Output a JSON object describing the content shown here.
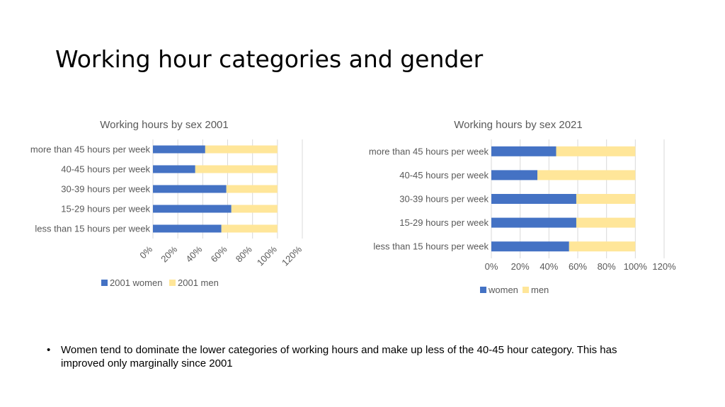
{
  "slide": {
    "title": "Working hour categories and gender",
    "bullet_symbol": "•",
    "bullet": "Women tend to dominate the lower categories of working hours and make up less of the 40-45 hour category. This has improved only marginally since 2001"
  },
  "colors": {
    "women": "#4472C4",
    "men": "#FFE699",
    "text": "#595959",
    "grid": "#D9D9D9"
  },
  "chart_data": [
    {
      "type": "bar",
      "orientation": "horizontal",
      "stacked": "percent",
      "title": "Working hours by sex 2001",
      "categories": [
        "less than 15 hours per week",
        "15-29 hours per week",
        "30-39 hours per week",
        "40-45 hours per week",
        "more than 45 hours per week"
      ],
      "series": [
        {
          "name": "2001 women",
          "values": [
            55,
            63,
            59,
            34,
            42
          ]
        },
        {
          "name": "2001 men",
          "values": [
            45,
            37,
            41,
            66,
            58
          ]
        }
      ],
      "xlim": [
        0,
        120
      ],
      "ticks": [
        "0%",
        "20%",
        "40%",
        "60%",
        "80%",
        "100%",
        "120%"
      ],
      "tick_rotation": "diagonal",
      "grid": true,
      "legend": "bottom"
    },
    {
      "type": "bar",
      "orientation": "horizontal",
      "stacked": "percent",
      "title": "Working hours by sex 2021",
      "categories": [
        "less than 15 hours per week",
        "15-29 hours per week",
        "30-39 hours per week",
        "40-45 hours per week",
        "more than 45 hours per week"
      ],
      "series": [
        {
          "name": "women",
          "values": [
            54,
            59,
            59,
            32,
            45
          ]
        },
        {
          "name": "men",
          "values": [
            46,
            41,
            41,
            68,
            55
          ]
        }
      ],
      "xlim": [
        0,
        120
      ],
      "ticks": [
        "0%",
        "20%",
        "40%",
        "60%",
        "80%",
        "100%",
        "120%"
      ],
      "tick_rotation": "none",
      "grid": true,
      "legend": "bottom"
    }
  ]
}
